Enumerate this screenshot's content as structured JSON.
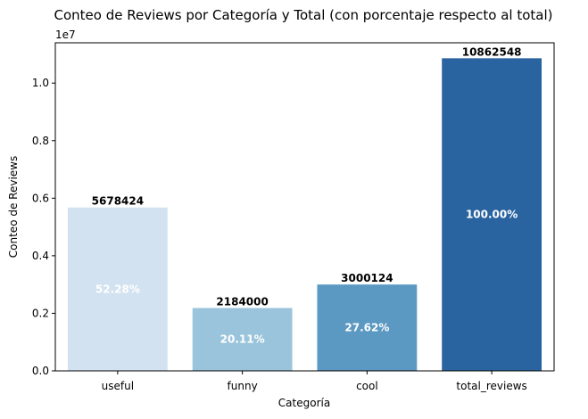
{
  "chart_data": {
    "type": "bar",
    "title": "Conteo de Reviews por Categoría y Total (con porcentaje respecto al total)",
    "xlabel": "Categoría",
    "ylabel": "Conteo de Reviews",
    "y_offset_label": "1e7",
    "ylim": [
      0,
      11400000
    ],
    "yticks": [
      0,
      2000000,
      4000000,
      6000000,
      8000000,
      10000000
    ],
    "ytick_labels": [
      "0.0",
      "0.2",
      "0.4",
      "0.6",
      "0.8",
      "1.0"
    ],
    "grid": false,
    "legend": "none",
    "categories": [
      "useful",
      "funny",
      "cool",
      "total_reviews"
    ],
    "values": [
      5678424,
      2184000,
      3000124,
      10862548
    ],
    "value_labels": [
      "5678424",
      "2184000",
      "3000124",
      "10862548"
    ],
    "percent_labels": [
      "52.28%",
      "20.11%",
      "27.62%",
      "100.00%"
    ],
    "colors": [
      "#d3e2f0",
      "#9ac4db",
      "#5b98c2",
      "#2a64a0"
    ]
  }
}
